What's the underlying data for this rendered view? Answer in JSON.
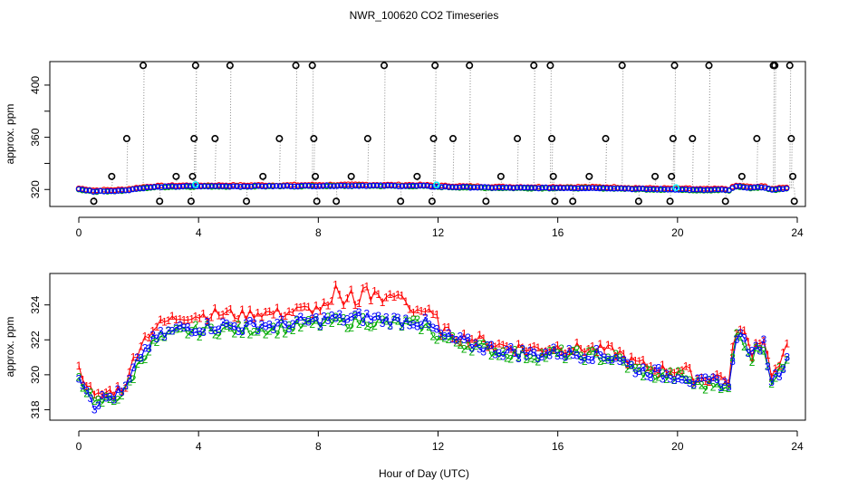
{
  "chart_data": [
    {
      "type": "scatter",
      "title": "NWR_100620  CO2 Timeseries",
      "xlabel": "",
      "ylabel": "approx. ppm",
      "xlim": [
        0,
        24
      ],
      "ylim": [
        307,
        418
      ],
      "xticks": [
        0,
        4,
        8,
        12,
        16,
        20,
        24
      ],
      "yticks": [
        320,
        360,
        400
      ],
      "yticks_minor": [
        340,
        380
      ],
      "colors": {
        "series1": "#ff0000",
        "series2": "#00aa00",
        "series3": "#0000ff",
        "special": "#00ffff",
        "spike": "#000000",
        "connector": "#888888"
      },
      "spike_points": [
        [
          0.5,
          311
        ],
        [
          1.1,
          330
        ],
        [
          1.6,
          359
        ],
        [
          2.15,
          415
        ],
        [
          2.7,
          311
        ],
        [
          3.25,
          330
        ],
        [
          3.75,
          311
        ],
        [
          3.8,
          330
        ],
        [
          3.85,
          359
        ],
        [
          3.9,
          415
        ],
        [
          4.55,
          359
        ],
        [
          5.05,
          415
        ],
        [
          5.6,
          311
        ],
        [
          6.15,
          330
        ],
        [
          6.7,
          359
        ],
        [
          7.25,
          415
        ],
        [
          7.8,
          415
        ],
        [
          7.85,
          359
        ],
        [
          7.9,
          330
        ],
        [
          7.95,
          311
        ],
        [
          8.6,
          311
        ],
        [
          9.1,
          330
        ],
        [
          9.65,
          359
        ],
        [
          10.2,
          415
        ],
        [
          10.75,
          311
        ],
        [
          11.3,
          330
        ],
        [
          11.8,
          311
        ],
        [
          11.85,
          359
        ],
        [
          11.9,
          415
        ],
        [
          12.5,
          359
        ],
        [
          13.05,
          415
        ],
        [
          13.6,
          311
        ],
        [
          14.1,
          330
        ],
        [
          14.65,
          359
        ],
        [
          15.2,
          415
        ],
        [
          15.75,
          415
        ],
        [
          15.8,
          359
        ],
        [
          15.85,
          330
        ],
        [
          15.9,
          311
        ],
        [
          16.5,
          311
        ],
        [
          17.05,
          330
        ],
        [
          17.6,
          359
        ],
        [
          18.15,
          415
        ],
        [
          18.7,
          311
        ],
        [
          19.25,
          330
        ],
        [
          19.75,
          311
        ],
        [
          19.8,
          330
        ],
        [
          19.85,
          359
        ],
        [
          19.9,
          415
        ],
        [
          20.5,
          359
        ],
        [
          21.05,
          415
        ],
        [
          21.6,
          311
        ],
        [
          22.15,
          330
        ],
        [
          22.65,
          359
        ],
        [
          23.2,
          415
        ],
        [
          23.25,
          415
        ],
        [
          23.75,
          415
        ],
        [
          23.8,
          359
        ],
        [
          23.85,
          330
        ],
        [
          23.9,
          311
        ]
      ]
    },
    {
      "type": "scatter",
      "title": "",
      "xlabel": "Hour of Day (UTC)",
      "ylabel": "approx. ppm",
      "xlim": [
        0,
        24
      ],
      "ylim": [
        317.4,
        325.8
      ],
      "xticks": [
        0,
        4,
        8,
        12,
        16,
        20,
        24
      ],
      "yticks": [
        318,
        320,
        322,
        324
      ],
      "series": [
        {
          "name": "1",
          "label": "1",
          "color": "#ff0000",
          "offset": 0.9
        },
        {
          "name": "2",
          "label": "2",
          "color": "#00aa00",
          "offset": 0.0
        },
        {
          "name": "3",
          "label": "3",
          "color": "#0000ff",
          "offset": 0.2
        }
      ],
      "base_curve": {
        "x": [
          0,
          0.3,
          0.5,
          0.8,
          1.2,
          1.5,
          1.8,
          2.1,
          2.5,
          3.0,
          3.5,
          4.0,
          4.5,
          5.0,
          5.5,
          6.0,
          6.5,
          7.0,
          7.5,
          8.0,
          8.5,
          9.0,
          9.5,
          10.0,
          10.5,
          11.0,
          11.5,
          12.0,
          12.5,
          13.0,
          13.5,
          14.0,
          14.5,
          15.0,
          15.5,
          16.0,
          16.5,
          17.0,
          17.5,
          18.0,
          18.5,
          19.0,
          19.5,
          20.0,
          20.3,
          20.6,
          21.0,
          21.3,
          21.6,
          21.75,
          21.9,
          22.2,
          22.5,
          22.7,
          22.9,
          23.1,
          23.3,
          23.5,
          23.7
        ],
        "y": [
          319.9,
          319.1,
          318.2,
          318.5,
          318.7,
          318.9,
          319.9,
          321.0,
          321.8,
          322.2,
          322.5,
          322.5,
          322.6,
          322.6,
          322.5,
          322.7,
          322.6,
          322.7,
          322.8,
          322.9,
          323.0,
          323.0,
          323.1,
          323.0,
          322.9,
          322.9,
          322.8,
          322.2,
          321.9,
          321.7,
          321.5,
          321.3,
          321.2,
          321.1,
          321.1,
          321.2,
          321.1,
          321.1,
          321.0,
          320.9,
          320.3,
          320.1,
          319.9,
          319.9,
          319.8,
          319.4,
          319.4,
          319.5,
          319.5,
          318.8,
          322.3,
          322.0,
          320.9,
          321.6,
          321.7,
          319.7,
          319.8,
          320.4,
          321.3
        ]
      }
    }
  ]
}
